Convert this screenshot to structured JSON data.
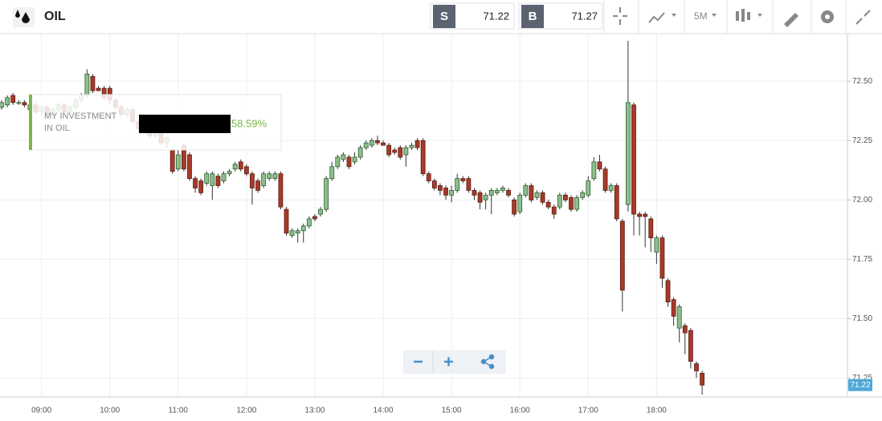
{
  "header": {
    "symbol": "OIL",
    "sell_label": "S",
    "sell_price": "71.22",
    "buy_label": "B",
    "buy_price": "71.27",
    "timeframe": "5M"
  },
  "overlay": {
    "line1": "MY INVESTMENT",
    "line2": "IN OIL",
    "value": "58.59%"
  },
  "chart_data": {
    "type": "candlestick",
    "grid": true,
    "up_color": "#8cbf8c",
    "down_color": "#a83a28",
    "ylim": [
      71.17,
      72.7
    ],
    "yticks": [
      {
        "value": 71.25,
        "label": "71.25"
      },
      {
        "value": 71.5,
        "label": "71.50"
      },
      {
        "value": 71.75,
        "label": "71.75"
      },
      {
        "value": 72,
        "label": "72.00"
      },
      {
        "value": 72.25,
        "label": "72.25"
      },
      {
        "value": 72.5,
        "label": "72.50"
      }
    ],
    "last_price": {
      "value": 71.22,
      "label": "71.22"
    },
    "categories": [
      null,
      null,
      null,
      null,
      null,
      null,
      null,
      "09:00",
      null,
      null,
      null,
      null,
      null,
      null,
      null,
      null,
      null,
      null,
      null,
      "10:00",
      null,
      null,
      null,
      null,
      null,
      null,
      null,
      null,
      null,
      null,
      null,
      "11:00",
      null,
      null,
      null,
      null,
      null,
      null,
      null,
      null,
      null,
      null,
      null,
      "12:00",
      null,
      null,
      null,
      null,
      null,
      null,
      null,
      null,
      null,
      null,
      null,
      "13:00",
      null,
      null,
      null,
      null,
      null,
      null,
      null,
      null,
      null,
      null,
      null,
      "14:00",
      null,
      null,
      null,
      null,
      null,
      null,
      null,
      null,
      null,
      null,
      null,
      "15:00",
      null,
      null,
      null,
      null,
      null,
      null,
      null,
      null,
      null,
      null,
      null,
      "16:00",
      null,
      null,
      null,
      null,
      null,
      null,
      null,
      null,
      null,
      null,
      null,
      "17:00",
      null,
      null,
      null,
      null,
      null,
      null,
      null,
      null,
      null,
      null,
      null,
      "18:00",
      null,
      null,
      null,
      null,
      null,
      null,
      null,
      null
    ],
    "open": [
      72.39,
      72.4,
      72.44,
      72.41,
      72.41,
      72.38,
      72.4,
      72.37,
      72.39,
      72.36,
      72.38,
      72.4,
      72.37,
      72.39,
      72.42,
      72.44,
      72.52,
      72.47,
      72.47,
      72.47,
      72.42,
      72.39,
      72.36,
      72.38,
      72.33,
      72.3,
      72.32,
      72.27,
      72.29,
      72.24,
      72.21,
      72.13,
      72.23,
      72.19,
      72.09,
      72.08,
      72.07,
      72.06,
      72.1,
      72.08,
      72.11,
      72.13,
      72.16,
      72.14,
      72.11,
      72.08,
      72.06,
      72.09,
      72.09,
      72.11,
      71.96,
      71.85,
      71.86,
      71.87,
      71.89,
      71.93,
      71.94,
      71.96,
      72.09,
      72.14,
      72.17,
      72.18,
      72.16,
      72.18,
      72.22,
      72.23,
      72.25,
      72.24,
      72.23,
      72.21,
      72.22,
      72.19,
      72.22,
      72.25,
      72.25,
      72.11,
      72.08,
      72.06,
      72.05,
      72.02,
      72.04,
      72.09,
      72.09,
      72.04,
      72.03,
      72.0,
      72.02,
      72.03,
      72.04,
      72.04,
      72.0,
      71.95,
      72.02,
      72.06,
      72.01,
      72.03,
      71.99,
      71.97,
      71.97,
      72.02,
      72.01,
      71.96,
      72.01,
      72.02,
      72.09,
      72.16,
      72.13,
      72.04,
      72.06,
      71.91,
      71.98,
      72.4,
      71.94,
      71.94,
      71.92,
      71.78,
      71.84,
      71.66,
      71.58,
      71.46,
      71.47,
      71.45,
      71.31,
      71.27
    ],
    "high": [
      72.42,
      72.44,
      72.45,
      72.42,
      72.42,
      72.41,
      72.41,
      72.4,
      72.4,
      72.39,
      72.41,
      72.41,
      72.4,
      72.43,
      72.45,
      72.55,
      72.53,
      72.48,
      72.48,
      72.48,
      72.43,
      72.4,
      72.39,
      72.39,
      72.34,
      72.33,
      72.33,
      72.3,
      72.3,
      72.27,
      72.22,
      72.21,
      72.24,
      72.2,
      72.1,
      72.09,
      72.12,
      72.12,
      72.11,
      72.12,
      72.13,
      72.16,
      72.17,
      72.15,
      72.12,
      72.09,
      72.12,
      72.12,
      72.12,
      72.12,
      71.97,
      71.88,
      71.88,
      71.9,
      71.93,
      71.94,
      71.97,
      72.1,
      72.16,
      72.19,
      72.2,
      72.19,
      72.2,
      72.23,
      72.25,
      72.26,
      72.27,
      72.25,
      72.24,
      72.22,
      72.23,
      72.23,
      72.24,
      72.26,
      72.26,
      72.12,
      72.09,
      72.07,
      72.06,
      72.06,
      72.11,
      72.1,
      72.1,
      72.05,
      72.04,
      72.03,
      72.05,
      72.05,
      72.06,
      72.05,
      72.01,
      72.03,
      72.07,
      72.07,
      72.04,
      72.04,
      72.0,
      71.98,
      72.03,
      72.03,
      72.02,
      72.02,
      72.04,
      72.1,
      72.18,
      72.19,
      72.14,
      72.07,
      72.07,
      71.92,
      72.67,
      72.41,
      71.95,
      71.95,
      71.93,
      71.85,
      71.85,
      71.67,
      71.59,
      71.56,
      71.48,
      71.46,
      71.32,
      71.28
    ],
    "low": [
      72.38,
      72.39,
      72.4,
      72.4,
      72.39,
      72.37,
      72.36,
      72.35,
      72.35,
      72.34,
      72.37,
      72.36,
      72.36,
      72.38,
      72.41,
      72.43,
      72.45,
      72.46,
      72.42,
      72.4,
      72.38,
      72.35,
      72.35,
      72.32,
      72.29,
      72.29,
      72.26,
      72.26,
      72.23,
      72.22,
      72.11,
      72.12,
      72.12,
      72.08,
      72.03,
      72.02,
      72.06,
      72.0,
      72.05,
      72.07,
      72.1,
      72.12,
      72.12,
      72.1,
      71.98,
      72.03,
      72.05,
      72.08,
      72.08,
      71.96,
      71.85,
      71.84,
      71.82,
      71.82,
      71.88,
      71.91,
      71.93,
      71.95,
      72.08,
      72.13,
      72.16,
      72.13,
      72.15,
      72.17,
      72.21,
      72.22,
      72.23,
      72.23,
      72.18,
      72.19,
      72.17,
      72.14,
      72.21,
      72.21,
      72.1,
      72.07,
      72.04,
      72.02,
      72.0,
      71.99,
      72.03,
      72.07,
      72.03,
      72.0,
      71.96,
      71.96,
      71.94,
      72.02,
      72.03,
      72.01,
      71.93,
      71.94,
      72.01,
      71.99,
      72.0,
      71.98,
      71.96,
      71.92,
      71.96,
      71.99,
      71.95,
      71.95,
      72.0,
      72.01,
      72.08,
      72.12,
      72.03,
      72.03,
      71.91,
      71.53,
      71.95,
      71.85,
      71.85,
      71.8,
      71.78,
      71.73,
      71.63,
      71.55,
      71.47,
      71.4,
      71.35,
      71.29,
      71.25,
      71.18
    ],
    "close": [
      72.41,
      72.43,
      72.41,
      72.41,
      72.4,
      72.4,
      72.37,
      72.39,
      72.36,
      72.38,
      72.4,
      72.37,
      72.39,
      72.42,
      72.44,
      72.53,
      72.46,
      72.46,
      72.43,
      72.42,
      72.39,
      72.36,
      72.38,
      72.33,
      72.3,
      72.32,
      72.27,
      72.29,
      72.24,
      72.26,
      72.12,
      72.19,
      72.13,
      72.09,
      72.05,
      72.03,
      72.11,
      72.11,
      72.06,
      72.11,
      72.12,
      72.15,
      72.13,
      72.11,
      72.05,
      72.04,
      72.11,
      72.11,
      72.11,
      71.97,
      71.86,
      71.87,
      71.87,
      71.89,
      71.92,
      71.92,
      71.96,
      72.09,
      72.14,
      72.18,
      72.19,
      72.14,
      72.18,
      72.22,
      72.24,
      72.25,
      72.24,
      72.23,
      72.19,
      72.2,
      72.18,
      72.22,
      72.23,
      72.22,
      72.11,
      72.08,
      72.05,
      72.04,
      72.02,
      72.04,
      72.09,
      72.08,
      72.04,
      72.02,
      71.99,
      72.02,
      72.04,
      72.04,
      72.05,
      72.02,
      71.94,
      72.02,
      72.06,
      72.0,
      72.03,
      71.99,
      71.97,
      71.94,
      72.02,
      72.0,
      71.96,
      72.01,
      72.03,
      72.08,
      72.16,
      72.13,
      72.04,
      72.06,
      71.92,
      71.62,
      72.41,
      71.94,
      71.93,
      71.93,
      71.84,
      71.84,
      71.67,
      71.57,
      71.51,
      71.55,
      71.44,
      71.32,
      71.28,
      71.22
    ]
  }
}
